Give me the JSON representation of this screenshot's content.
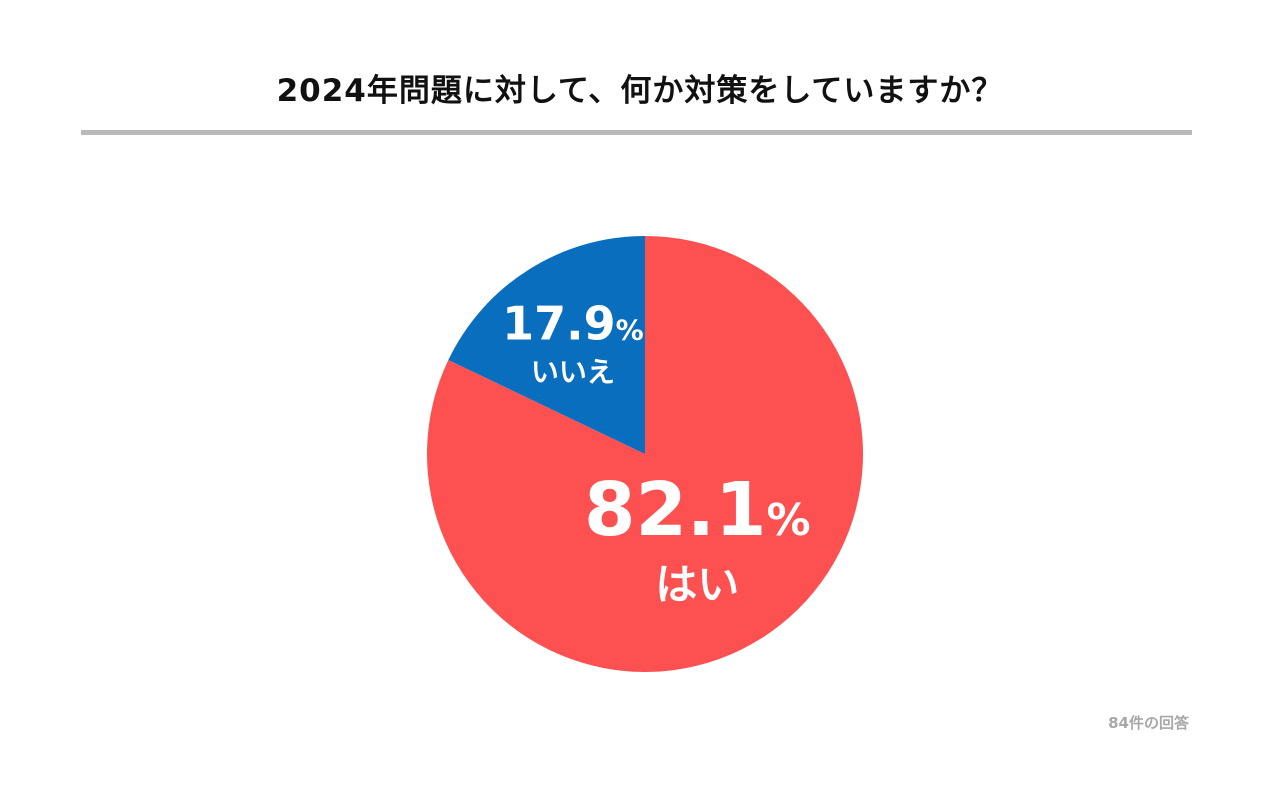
{
  "title": "2024年問題に対して、何か対策をしていますか？",
  "footnote": "84件の回答",
  "chart_data": {
    "type": "pie",
    "title": "2024年問題に対して、何か対策をしていますか？",
    "categories": [
      "はい",
      "いいえ"
    ],
    "values": [
      82.1,
      17.9
    ],
    "value_labels": [
      "82.1%",
      "17.9%"
    ],
    "unit": "%",
    "colors": [
      "#fd5050",
      "#0a6ebf"
    ],
    "start": "12 o'clock",
    "direction": "clockwise",
    "legend": "none",
    "note": "84件の回答"
  }
}
